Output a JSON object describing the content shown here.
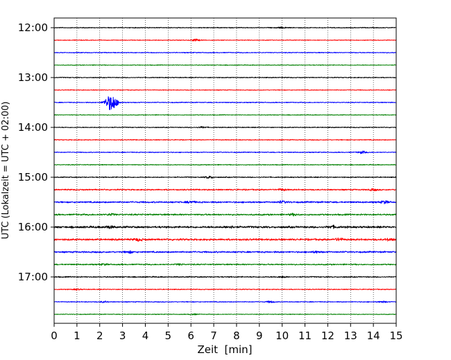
{
  "chart_data": {
    "type": "line",
    "title": "",
    "xlabel": "Zeit  [min]",
    "ylabel": "UTC (Lokalzeit = UTC + 02:00)",
    "xlim": [
      0,
      15
    ],
    "x_ticks": [
      "0",
      "1",
      "2",
      "3",
      "4",
      "5",
      "6",
      "7",
      "8",
      "9",
      "10",
      "11",
      "12",
      "13",
      "14",
      "15"
    ],
    "y_tick_labels": [
      "12:00",
      "13:00",
      "14:00",
      "15:00",
      "16:00",
      "17:00"
    ],
    "vertical_grid": "dotted at every minute",
    "trace_interval_min": 15,
    "color_cycle": [
      "#000000",
      "#ff0000",
      "#0000ff",
      "#008000"
    ],
    "traces": [
      {
        "start": "12:00",
        "color": "#000000",
        "noise": 0.3,
        "events": [
          {
            "x": 10.0,
            "amp": 0.5
          }
        ]
      },
      {
        "start": "12:15",
        "color": "#ff0000",
        "noise": 0.25,
        "events": [
          {
            "x": 6.2,
            "amp": 0.9
          }
        ]
      },
      {
        "start": "12:30",
        "color": "#0000ff",
        "noise": 0.3,
        "events": []
      },
      {
        "start": "12:45",
        "color": "#008000",
        "noise": 0.25,
        "events": []
      },
      {
        "start": "13:00",
        "color": "#000000",
        "noise": 0.3,
        "events": []
      },
      {
        "start": "13:15",
        "color": "#ff0000",
        "noise": 0.25,
        "events": []
      },
      {
        "start": "13:30",
        "color": "#0000ff",
        "noise": 0.3,
        "events": [
          {
            "x": 2.5,
            "amp": 7.0,
            "width": 0.25
          }
        ]
      },
      {
        "start": "13:45",
        "color": "#008000",
        "noise": 0.25,
        "events": []
      },
      {
        "start": "14:00",
        "color": "#000000",
        "noise": 0.3,
        "events": [
          {
            "x": 6.5,
            "amp": 0.6
          }
        ]
      },
      {
        "start": "14:15",
        "color": "#ff0000",
        "noise": 0.3,
        "events": []
      },
      {
        "start": "14:30",
        "color": "#0000ff",
        "noise": 0.3,
        "events": [
          {
            "x": 13.5,
            "amp": 1.0
          }
        ]
      },
      {
        "start": "14:45",
        "color": "#008000",
        "noise": 0.3,
        "events": []
      },
      {
        "start": "15:00",
        "color": "#000000",
        "noise": 0.35,
        "events": [
          {
            "x": 6.8,
            "amp": 0.9
          }
        ]
      },
      {
        "start": "15:15",
        "color": "#ff0000",
        "noise": 0.45,
        "events": [
          {
            "x": 10.0,
            "amp": 0.7
          },
          {
            "x": 14.0,
            "amp": 0.7
          }
        ]
      },
      {
        "start": "15:30",
        "color": "#0000ff",
        "noise": 0.55,
        "events": [
          {
            "x": 6.0,
            "amp": 0.8
          },
          {
            "x": 10.0,
            "amp": 0.8
          },
          {
            "x": 14.5,
            "amp": 1.0
          }
        ]
      },
      {
        "start": "15:45",
        "color": "#008000",
        "noise": 0.55,
        "events": [
          {
            "x": 2.5,
            "amp": 0.7
          },
          {
            "x": 10.5,
            "amp": 0.7
          }
        ]
      },
      {
        "start": "16:00",
        "color": "#000000",
        "noise": 0.7,
        "events": [
          {
            "x": 2.4,
            "amp": 1.0
          },
          {
            "x": 7.7,
            "amp": 0.9
          },
          {
            "x": 12.2,
            "amp": 0.9
          }
        ]
      },
      {
        "start": "16:15",
        "color": "#ff0000",
        "noise": 0.65,
        "events": [
          {
            "x": 3.7,
            "amp": 0.9
          },
          {
            "x": 12.5,
            "amp": 0.9
          },
          {
            "x": 14.7,
            "amp": 0.8
          }
        ]
      },
      {
        "start": "16:30",
        "color": "#0000ff",
        "noise": 0.55,
        "events": [
          {
            "x": 3.3,
            "amp": 0.8
          },
          {
            "x": 11.5,
            "amp": 0.6
          }
        ]
      },
      {
        "start": "16:45",
        "color": "#008000",
        "noise": 0.45,
        "events": [
          {
            "x": 2.2,
            "amp": 0.5
          },
          {
            "x": 5.5,
            "amp": 0.5
          }
        ]
      },
      {
        "start": "17:00",
        "color": "#000000",
        "noise": 0.4,
        "events": [
          {
            "x": 10.0,
            "amp": 0.6
          }
        ]
      },
      {
        "start": "17:15",
        "color": "#ff0000",
        "noise": 0.3,
        "events": [
          {
            "x": 1.0,
            "amp": 0.5
          }
        ]
      },
      {
        "start": "17:30",
        "color": "#0000ff",
        "noise": 0.3,
        "events": [
          {
            "x": 2.2,
            "amp": 0.6
          },
          {
            "x": 9.5,
            "amp": 0.7
          },
          {
            "x": 14.4,
            "amp": 0.6
          }
        ]
      },
      {
        "start": "17:45",
        "color": "#008000",
        "noise": 0.25,
        "events": [
          {
            "x": 6.1,
            "amp": 0.5
          }
        ]
      }
    ]
  }
}
